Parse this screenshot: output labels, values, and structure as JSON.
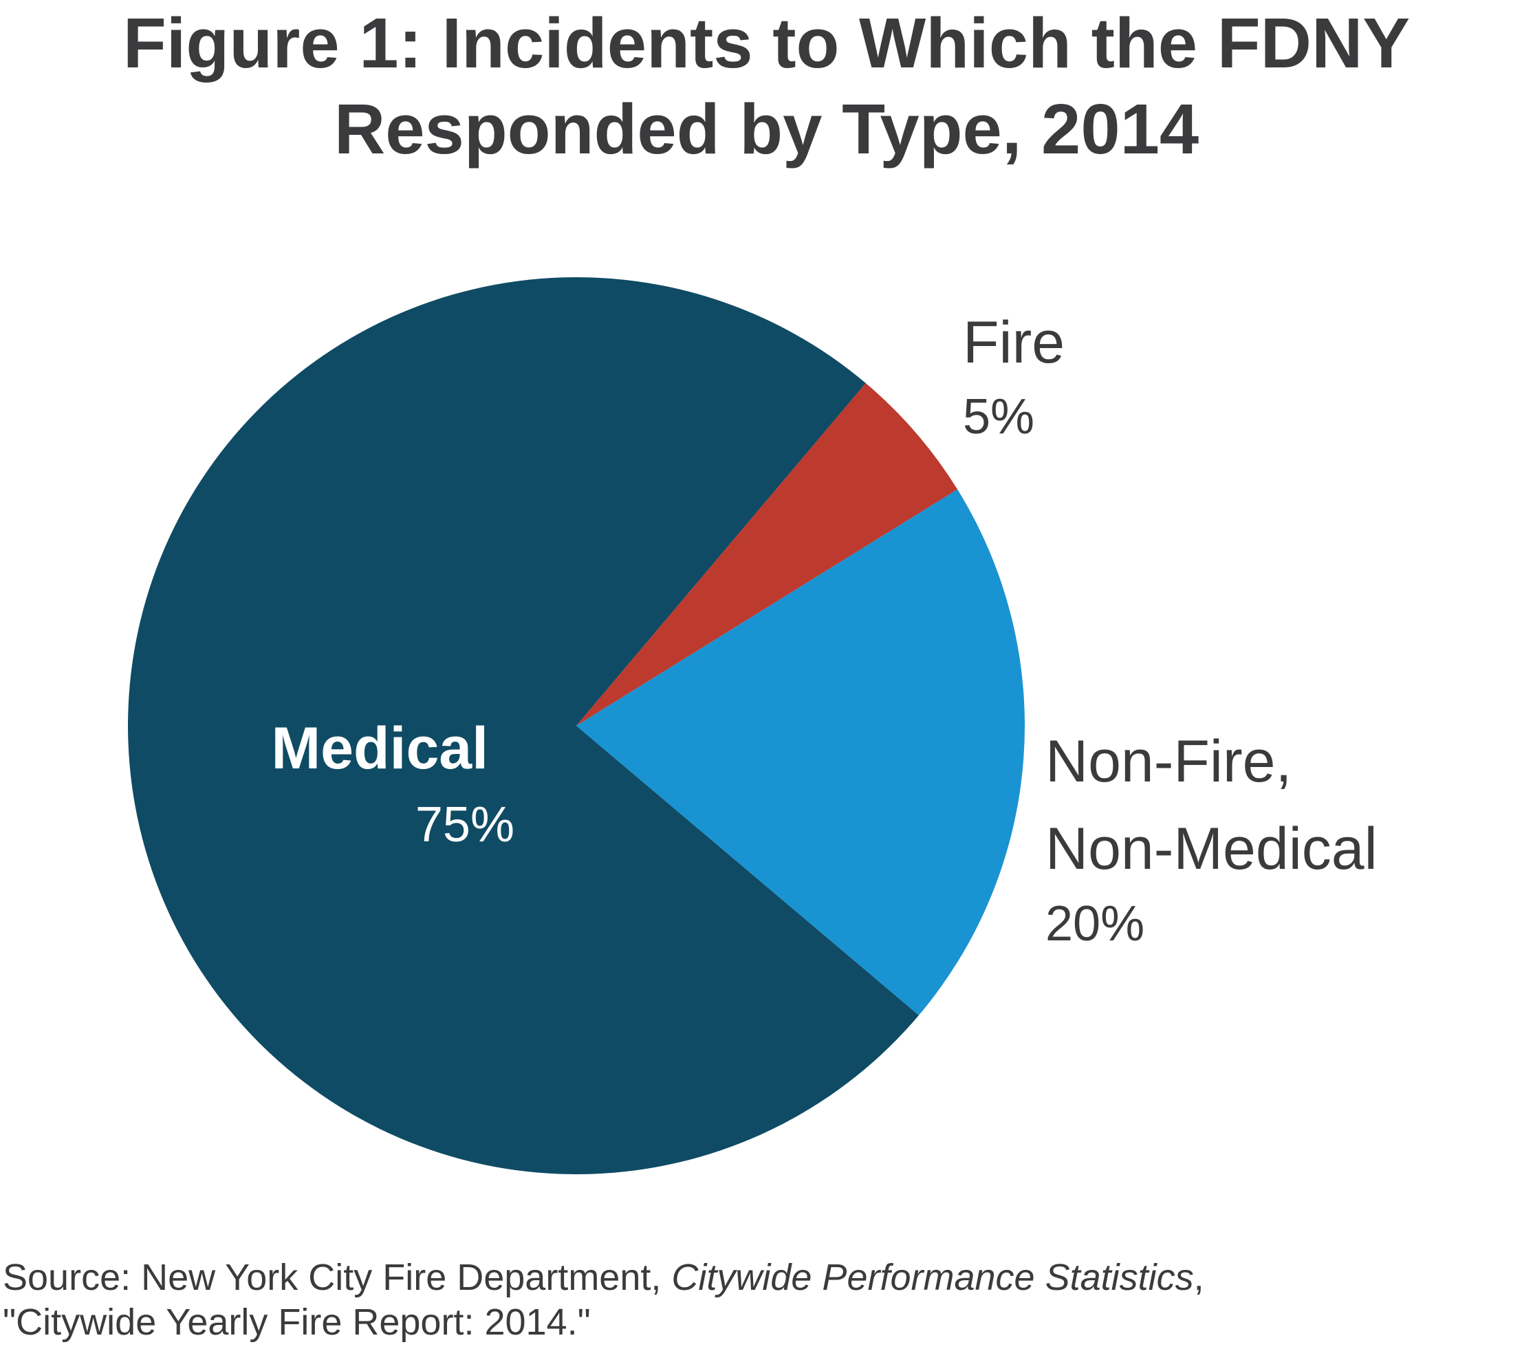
{
  "chart_data": {
    "type": "pie",
    "title_lines": [
      "Figure 1: Incidents to Which the FDNY",
      "Responded by Type, 2014"
    ],
    "slices": [
      {
        "name": "Medical",
        "label": "Medical",
        "value": 75,
        "percent_label": "75%",
        "color": "#0f4b64"
      },
      {
        "name": "Fire",
        "label": "Fire",
        "value": 5,
        "percent_label": "5%",
        "color": "#bd3a2e"
      },
      {
        "name": "Non-Fire, Non-Medical",
        "label_lines": [
          "Non-Fire,",
          "Non-Medical"
        ],
        "value": 20,
        "percent_label": "20%",
        "color": "#1a93d2"
      }
    ]
  },
  "source": {
    "prefix": "Source: New York City Fire Department, ",
    "italic": "Citywide Performance Statistics",
    "suffix": ",",
    "line2": "\"Citywide Yearly Fire Report: 2014.\""
  },
  "colors": {
    "text": "#3b3b3d",
    "background": "#ffffff"
  }
}
